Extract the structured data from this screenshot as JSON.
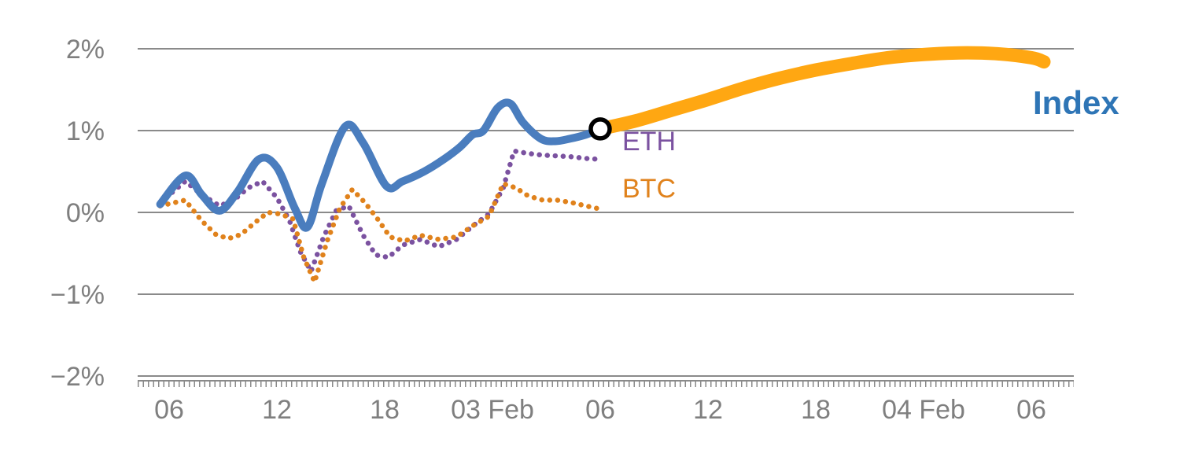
{
  "chart_data": {
    "type": "line",
    "title": "",
    "xlabel": "",
    "ylabel": "",
    "x_axis": {
      "unit": "time",
      "tick_hours": [
        6,
        12,
        18,
        24,
        30,
        36,
        42,
        48,
        54
      ],
      "tick_labels": [
        "06",
        "12",
        "18",
        "03 Feb",
        "06",
        "12",
        "18",
        "04 Feb",
        "06"
      ],
      "range_hours": [
        5,
        55.5
      ]
    },
    "y_axis": {
      "tick_values": [
        2,
        1,
        0,
        -1,
        -2
      ],
      "tick_labels": [
        "2%",
        "1%",
        "0%",
        "−1%",
        "−2%"
      ],
      "range": [
        -2.2,
        2.2
      ],
      "grid": true
    },
    "colors": {
      "grid": "#8a8a8a",
      "axis": "#8a8a8a",
      "tick_text": "#7f7f7f",
      "index_history": "#4A7DBE",
      "index_forecast": "#FFA712",
      "eth": "#7B52A0",
      "btc": "#E0821C",
      "index_label": "#2E75B6",
      "marker_fill": "#ffffff",
      "marker_stroke": "#000000"
    },
    "legend": "inline-labels",
    "series": [
      {
        "id": "eth",
        "name": "ETH",
        "style": "dotted",
        "width": 6.5,
        "color": "#7B52A0",
        "smooth": false,
        "x": [
          5.5,
          6.9,
          7.8,
          8.8,
          9.6,
          10.4,
          11.2,
          12.0,
          12.7,
          13.3,
          13.9,
          14.6,
          15.3,
          16.0,
          16.8,
          17.5,
          18.2,
          19.0,
          20.0,
          21.0,
          22.0,
          23.0,
          23.8,
          24.6,
          25.2,
          26.0,
          26.8,
          27.6,
          28.4,
          29.2,
          29.9
        ],
        "y": [
          0.12,
          0.38,
          0.22,
          0.08,
          0.15,
          0.3,
          0.38,
          0.18,
          -0.1,
          -0.48,
          -0.72,
          -0.3,
          0.02,
          0.08,
          -0.28,
          -0.52,
          -0.55,
          -0.4,
          -0.33,
          -0.42,
          -0.33,
          -0.15,
          -0.02,
          0.3,
          0.75,
          0.72,
          0.7,
          0.69,
          0.68,
          0.66,
          0.65
        ]
      },
      {
        "id": "btc",
        "name": "BTC",
        "style": "dotted",
        "width": 6.5,
        "color": "#E0821C",
        "smooth": false,
        "x": [
          5.5,
          6.9,
          7.8,
          8.6,
          9.3,
          10.0,
          10.8,
          11.5,
          12.2,
          12.9,
          13.5,
          14.1,
          14.8,
          15.5,
          16.2,
          16.9,
          17.6,
          18.3,
          19.1,
          20.0,
          21.0,
          22.0,
          23.0,
          23.8,
          24.6,
          25.3,
          26.0,
          26.8,
          27.6,
          28.4,
          29.2,
          29.8
        ],
        "y": [
          0.08,
          0.15,
          -0.1,
          -0.27,
          -0.32,
          -0.27,
          -0.12,
          0.0,
          -0.02,
          -0.08,
          -0.55,
          -0.85,
          -0.35,
          0.05,
          0.28,
          0.12,
          -0.08,
          -0.3,
          -0.35,
          -0.28,
          -0.33,
          -0.3,
          -0.15,
          -0.05,
          0.35,
          0.3,
          0.2,
          0.15,
          0.15,
          0.12,
          0.08,
          0.05
        ]
      },
      {
        "id": "index-history",
        "name": "Index (history)",
        "style": "solid",
        "width": 10,
        "color": "#4A7DBE",
        "smooth": true,
        "x": [
          5.5,
          6.9,
          7.8,
          8.8,
          9.8,
          11.0,
          12.0,
          13.0,
          13.7,
          14.5,
          15.8,
          16.8,
          18.1,
          19.0,
          20.2,
          21.3,
          22.2,
          22.9,
          23.5,
          24.3,
          25.0,
          25.7,
          26.7,
          27.5,
          28.3,
          29.2,
          30.0
        ],
        "y": [
          0.1,
          0.45,
          0.22,
          0.02,
          0.25,
          0.65,
          0.55,
          0.05,
          -0.18,
          0.35,
          1.05,
          0.85,
          0.32,
          0.38,
          0.5,
          0.65,
          0.8,
          0.95,
          1.0,
          1.28,
          1.33,
          1.1,
          0.9,
          0.87,
          0.9,
          0.95,
          1.02
        ]
      },
      {
        "id": "index-forecast",
        "name": "Index (forecast)",
        "style": "solid",
        "width": 17,
        "color": "#FFA712",
        "smooth": true,
        "x": [
          30.0,
          32,
          34,
          36,
          38,
          40,
          42,
          44,
          46,
          48,
          50,
          52,
          54,
          54.7
        ],
        "y": [
          1.02,
          1.12,
          1.25,
          1.38,
          1.52,
          1.64,
          1.74,
          1.82,
          1.89,
          1.93,
          1.95,
          1.94,
          1.89,
          1.84
        ]
      }
    ],
    "marker": {
      "x": 30.0,
      "y": 1.02,
      "radius": 12
    },
    "labels": {
      "index": {
        "text": "Index",
        "color": "#2E75B6"
      },
      "eth": {
        "text": "ETH",
        "color": "#7B52A0"
      },
      "btc": {
        "text": "BTC",
        "color": "#E0821C"
      }
    }
  }
}
